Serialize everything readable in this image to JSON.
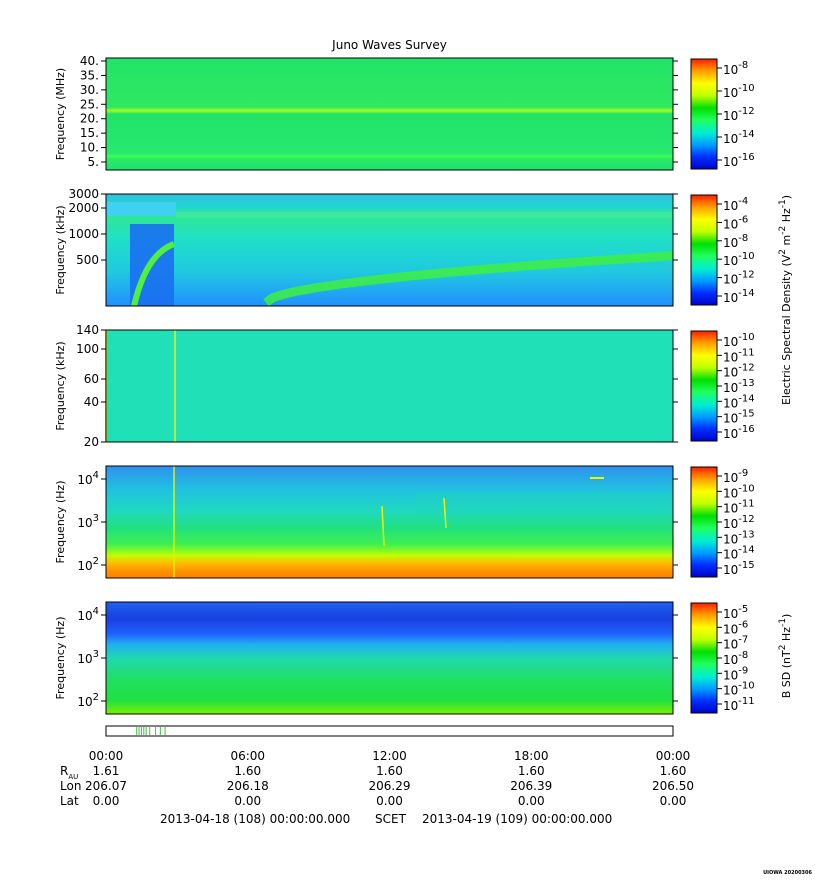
{
  "colors": {
    "palette": [
      "#0000c8",
      "#0030ff",
      "#00a0ff",
      "#00f0d0",
      "#20ff60",
      "#00e000",
      "#c0ff00",
      "#ffff00",
      "#ffa000",
      "#ff2000"
    ]
  },
  "chart_data": [
    {
      "panel": "waves-hf",
      "type": "heatmap",
      "title": "Juno Waves Survey",
      "ylabel": "Frequency (MHz)",
      "yticks": [
        "40.",
        "35.",
        "30.",
        "25.",
        "20.",
        "15.",
        "10.",
        "5."
      ],
      "ylim": [
        3.5,
        41.5
      ],
      "yscale": "linear",
      "colorbar_ticks": [
        [
          "10",
          "-8"
        ],
        [
          "10",
          "-10"
        ],
        [
          "10",
          "-12"
        ],
        [
          "10",
          "-14"
        ],
        [
          "10",
          "-16"
        ]
      ],
      "features": [
        {
          "kind": "band",
          "center": 21,
          "level": "green-yellow"
        },
        {
          "kind": "band",
          "center": 8.5,
          "level": "green"
        }
      ],
      "background_level": "green"
    },
    {
      "panel": "waves-lfr-khz",
      "type": "heatmap",
      "ylabel": "Frequency (kHz)",
      "yticks": [
        "3000",
        "2000",
        "1000",
        "500"
      ],
      "yscale": "log",
      "ylim": [
        100,
        3000
      ],
      "colorbar_ticks": [
        [
          "10",
          "-4"
        ],
        [
          "10",
          "-6"
        ],
        [
          "10",
          "-8"
        ],
        [
          "10",
          "-10"
        ],
        [
          "10",
          "-12"
        ],
        [
          "10",
          "-14"
        ]
      ],
      "colorbar_label": {
        "base": "Electric Spectral Density (V",
        "sup1": "2",
        "mid": " m",
        "sup2": "-2",
        "mid2": " Hz",
        "sup3": "-1",
        "end": ")"
      },
      "features": [
        {
          "kind": "band",
          "center": 1900,
          "level": "green"
        },
        {
          "kind": "curve",
          "description": "rising emission",
          "level": "green"
        }
      ],
      "background_level": "cyan"
    },
    {
      "panel": "waves-lfr-khz-low",
      "type": "heatmap",
      "ylabel": "Frequency (kHz)",
      "yticks": [
        "140",
        "100",
        "60",
        "40",
        "20"
      ],
      "ylim": [
        20,
        140
      ],
      "yscale": "linear",
      "colorbar_ticks": [
        [
          "10",
          "-10"
        ],
        [
          "10",
          "-11"
        ],
        [
          "10",
          "-12"
        ],
        [
          "10",
          "-13"
        ],
        [
          "10",
          "-14"
        ],
        [
          "10",
          "-15"
        ],
        [
          "10",
          "-16"
        ]
      ],
      "features": [
        {
          "kind": "spike",
          "time_hours": 3.0,
          "level": "yellow"
        }
      ],
      "background_level": "cyan"
    },
    {
      "panel": "waves-e-hz",
      "type": "heatmap",
      "ylabel": "Frequency (Hz)",
      "yticks": [
        [
          "10",
          "4"
        ],
        [
          "10",
          "3"
        ],
        [
          "10",
          "2"
        ]
      ],
      "ylim": [
        50,
        20000
      ],
      "yscale": "log",
      "colorbar_ticks": [
        [
          "10",
          "-9"
        ],
        [
          "10",
          "-10"
        ],
        [
          "10",
          "-11"
        ],
        [
          "10",
          "-12"
        ],
        [
          "10",
          "-13"
        ],
        [
          "10",
          "-14"
        ],
        [
          "10",
          "-15"
        ]
      ],
      "features": [
        {
          "kind": "band",
          "center": 150,
          "level": "orange"
        },
        {
          "kind": "band",
          "center": 1000,
          "level": "green"
        }
      ],
      "background_level": "cyan"
    },
    {
      "panel": "waves-b-hz",
      "type": "heatmap",
      "ylabel": "Frequency (Hz)",
      "yticks": [
        [
          "10",
          "4"
        ],
        [
          "10",
          "3"
        ],
        [
          "10",
          "2"
        ]
      ],
      "ylim": [
        50,
        20000
      ],
      "yscale": "log",
      "colorbar_ticks": [
        [
          "10",
          "-5"
        ],
        [
          "10",
          "-6"
        ],
        [
          "10",
          "-7"
        ],
        [
          "10",
          "-8"
        ],
        [
          "10",
          "-9"
        ],
        [
          "10",
          "-10"
        ],
        [
          "10",
          "-11"
        ]
      ],
      "colorbar_label": {
        "base": "B SD (nT",
        "sup1": "2",
        "mid": " Hz",
        "sup2": "-1",
        "end": ")"
      },
      "features": [
        {
          "kind": "band",
          "center": 10000,
          "level": "blue"
        },
        {
          "kind": "band",
          "center": 150,
          "level": "green"
        }
      ],
      "background_level": "green"
    }
  ],
  "mode_strip": {
    "marks_hours": [
      1.3,
      1.4,
      1.5,
      1.6,
      1.7,
      1.85,
      2.1,
      2.3,
      2.5
    ]
  },
  "time_axis": {
    "ticks": [
      "00:00",
      "06:00",
      "12:00",
      "18:00",
      "00:00"
    ],
    "rows": [
      {
        "label": "R",
        "label_sub": "AU",
        "values": [
          "1.61",
          "1.60",
          "1.60",
          "1.60",
          "1.60"
        ]
      },
      {
        "label": "Lon",
        "label_sub": "",
        "values": [
          "206.07",
          "206.18",
          "206.29",
          "206.39",
          "206.50"
        ]
      },
      {
        "label": "Lat",
        "label_sub": "",
        "values": [
          "0.00",
          "0.00",
          "0.00",
          "0.00",
          "0.00"
        ]
      }
    ],
    "start": "2013-04-18 (108) 00:00:00.000",
    "frame": "SCET",
    "end": "2013-04-19 (109) 00:00:00.000"
  },
  "stamp": "UIOWA 20200306"
}
